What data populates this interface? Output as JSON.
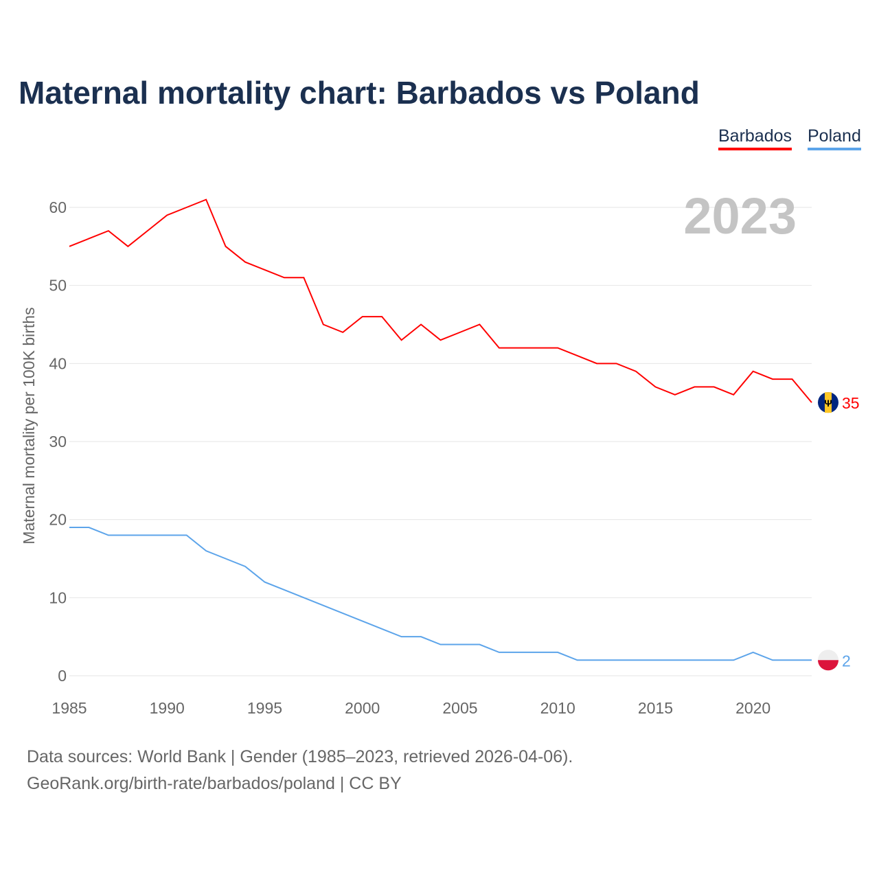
{
  "chart_data": {
    "type": "line",
    "title": "Maternal mortality chart: Barbados vs Poland",
    "ylabel": "Maternal mortality per 100K births",
    "xlabel": "",
    "year_label": "2023",
    "ylim": [
      0,
      60
    ],
    "xlim": [
      1985,
      2023
    ],
    "yticks": [
      0,
      10,
      20,
      30,
      40,
      50,
      60
    ],
    "xticks": [
      1985,
      1990,
      1995,
      2000,
      2005,
      2010,
      2015,
      2020
    ],
    "grid": true,
    "legend_placement": "top-right",
    "x": [
      1985,
      1986,
      1987,
      1988,
      1989,
      1990,
      1991,
      1992,
      1993,
      1994,
      1995,
      1996,
      1997,
      1998,
      1999,
      2000,
      2001,
      2002,
      2003,
      2004,
      2005,
      2006,
      2007,
      2008,
      2009,
      2010,
      2011,
      2012,
      2013,
      2014,
      2015,
      2016,
      2017,
      2018,
      2019,
      2020,
      2021,
      2022,
      2023
    ],
    "series": [
      {
        "name": "Barbados",
        "color": "#ff0000",
        "end_label": "35",
        "values": [
          55,
          56,
          57,
          55,
          57,
          59,
          60,
          61,
          55,
          53,
          52,
          51,
          51,
          45,
          44,
          46,
          46,
          43,
          45,
          43,
          44,
          45,
          42,
          42,
          42,
          42,
          41,
          40,
          40,
          39,
          37,
          36,
          37,
          37,
          36,
          39,
          38,
          38,
          35
        ]
      },
      {
        "name": "Poland",
        "color": "#5ca4ea",
        "end_label": "2",
        "values": [
          19,
          19,
          18,
          18,
          18,
          18,
          18,
          16,
          15,
          14,
          12,
          11,
          10,
          9,
          8,
          7,
          6,
          5,
          5,
          4,
          4,
          4,
          3,
          3,
          3,
          3,
          2,
          2,
          2,
          2,
          2,
          2,
          2,
          2,
          2,
          3,
          2,
          2,
          2
        ]
      }
    ]
  },
  "footer": {
    "line1": "Data sources: World Bank | Gender (1985–2023, retrieved 2026-04-06).",
    "line2": "GeoRank.org/birth-rate/barbados/poland | CC BY"
  }
}
